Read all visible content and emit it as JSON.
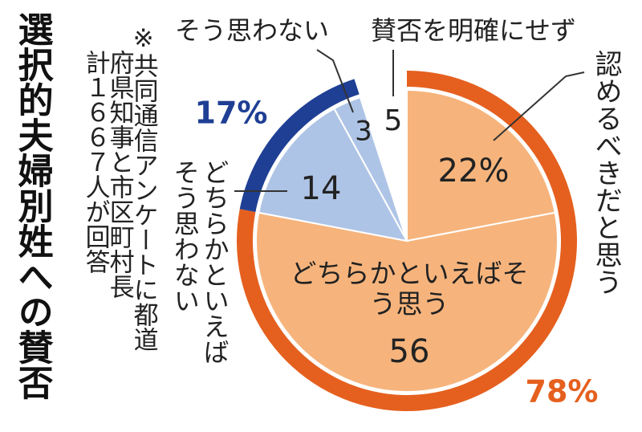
{
  "chart_data": {
    "type": "pie",
    "title": "選択的夫婦別姓への賛否",
    "note": [
      "※共同通信アンケートに都道",
      "府県知事と市区町村長",
      "計１６６７人が回答"
    ],
    "categories": [
      "認めるべきだと思う",
      "どちらかといえばそう思う",
      "どちらかといえばそう思わない",
      "そう思わない",
      "賛否を明確にせず"
    ],
    "values": [
      22,
      56,
      14,
      3,
      5
    ],
    "value_labels": [
      "22%",
      "56",
      "14",
      "3",
      "5"
    ],
    "colors": [
      "#f6b47c",
      "#f6b47c",
      "#aec4e6",
      "#aec4e6",
      "#ffffff"
    ],
    "ring": {
      "values": [
        78,
        17
      ],
      "value_labels": [
        "78%",
        "17%"
      ],
      "colors": [
        "#e5601f",
        "#1f3f94"
      ]
    }
  }
}
